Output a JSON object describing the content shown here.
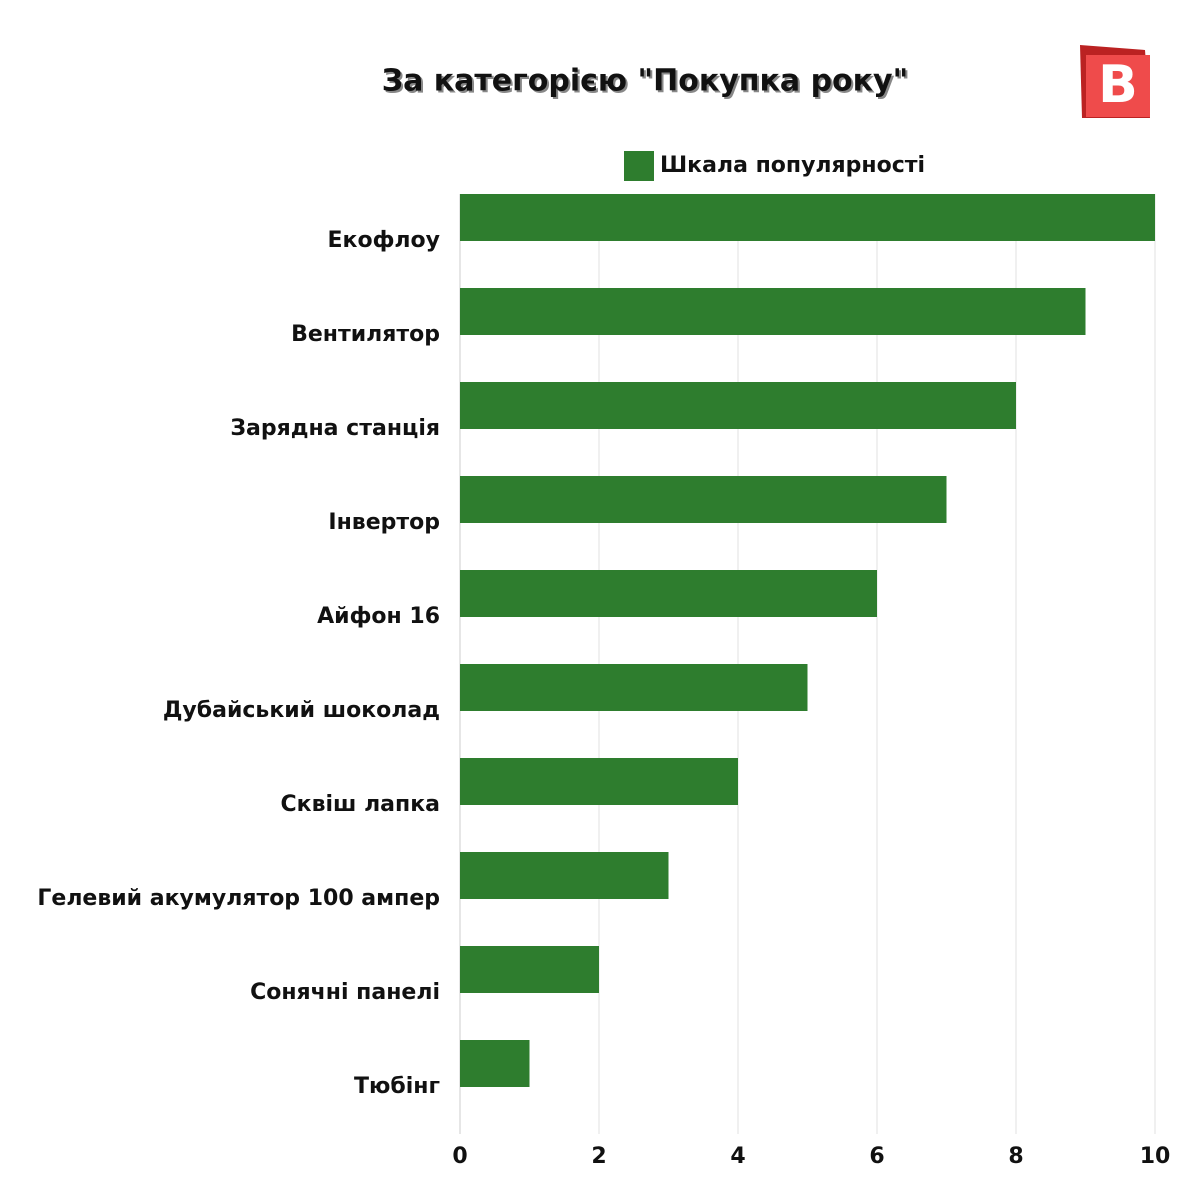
{
  "chart_data": {
    "type": "bar",
    "orientation": "horizontal",
    "title": "За категорією \"Покупка року\"",
    "categories": [
      "Екофлоу",
      "Вентилятор",
      "Зарядна станція",
      "Інвертор",
      "Айфон 16",
      "Дубайський шоколад",
      "Сквіш лапка",
      "Гелевий акумулятор 100 ампер",
      "Сонячні панелі",
      "Тюбінг"
    ],
    "series": [
      {
        "name": "Шкала популярності",
        "color": "#2e7d2e",
        "values": [
          10,
          9,
          8,
          7,
          6,
          5,
          4,
          3,
          2,
          1
        ]
      }
    ],
    "xlim": [
      0,
      10
    ],
    "xticks": [
      0,
      2,
      4,
      6,
      8,
      10
    ],
    "grid": true,
    "legend": "top"
  },
  "logo": "B"
}
